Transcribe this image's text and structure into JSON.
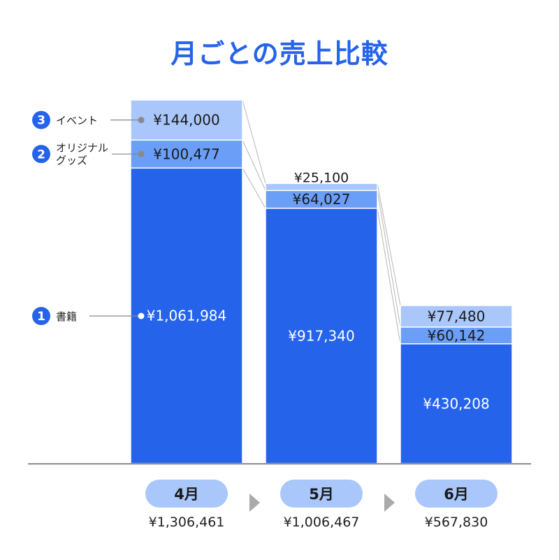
{
  "title": "月ごとの売上比較",
  "colors": {
    "books": "#2563eb",
    "goods": "#6a9ef7",
    "event": "#a9c7fb",
    "accent": "#2563eb",
    "pill": "#a9c7fb"
  },
  "legend": [
    {
      "num": "1",
      "lines": [
        "書籍"
      ],
      "series": "books"
    },
    {
      "num": "2",
      "lines": [
        "オリジナル",
        "グッズ"
      ],
      "series": "goods"
    },
    {
      "num": "3",
      "lines": [
        "イベント"
      ],
      "series": "event"
    }
  ],
  "chart_data": {
    "type": "bar",
    "stacked": true,
    "title": "月ごとの売上比較",
    "categories": [
      "4月",
      "5月",
      "6月"
    ],
    "series": [
      {
        "key": "books",
        "name": "書籍",
        "values": [
          1061984,
          917340,
          430208
        ],
        "labels": [
          "¥1,061,984",
          "¥917,340",
          "¥430,208"
        ]
      },
      {
        "key": "goods",
        "name": "オリジナルグッズ",
        "values": [
          100477,
          64027,
          60142
        ],
        "labels": [
          "¥100,477",
          "¥64,027",
          "¥60,142"
        ]
      },
      {
        "key": "event",
        "name": "イベント",
        "values": [
          144000,
          25100,
          77480
        ],
        "labels": [
          "¥144,000",
          "¥25,100",
          "¥77,480"
        ]
      }
    ],
    "totals": [
      "¥1,306,461",
      "¥1,006,467",
      "¥567,830"
    ],
    "ylim": [
      0,
      1306461
    ],
    "grid": false,
    "legend_position": "left"
  }
}
